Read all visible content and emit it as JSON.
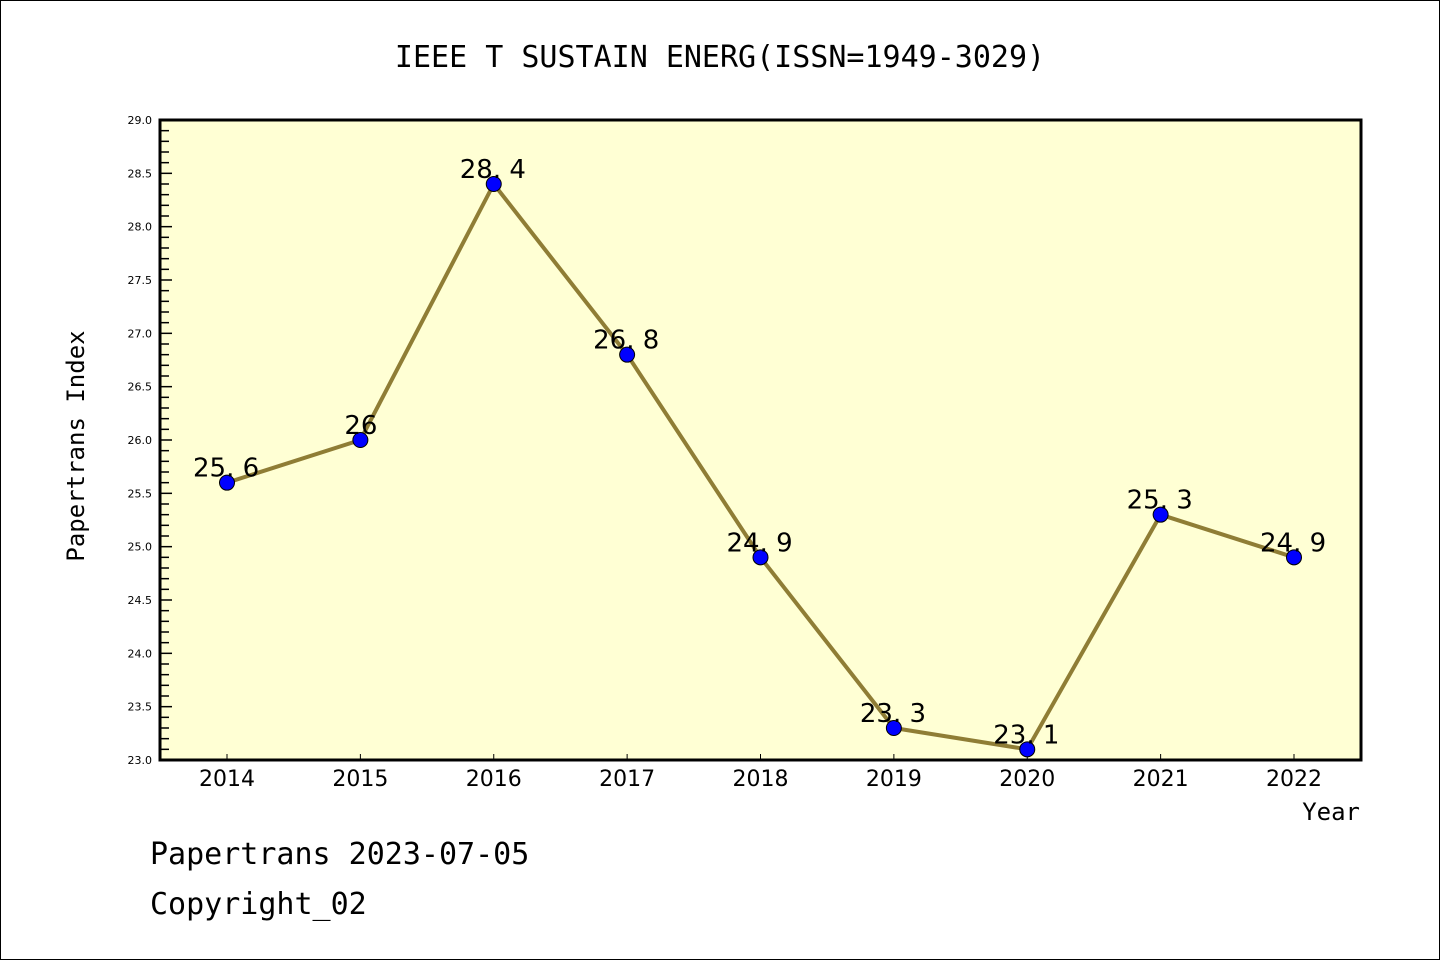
{
  "chart_data": {
    "type": "line",
    "title": "IEEE T SUSTAIN ENERG(ISSN=1949-3029)",
    "xlabel": "Year",
    "ylabel": "Papertrans Index",
    "categories": [
      "2014",
      "2015",
      "2016",
      "2017",
      "2018",
      "2019",
      "2020",
      "2021",
      "2022"
    ],
    "series": [
      {
        "name": "Papertrans Index",
        "values": [
          25.6,
          26,
          28.4,
          26.8,
          24.9,
          23.3,
          23.1,
          25.3,
          24.9
        ],
        "labels": [
          "25.6",
          "26",
          "28.4",
          "26.8",
          "24.9",
          "23.3",
          "23.1",
          "25.3",
          "24.9"
        ]
      }
    ],
    "ylim": [
      23.0,
      29.0
    ],
    "yticks": [
      "23.0",
      "23.5",
      "24.0",
      "24.5",
      "25.0",
      "25.5",
      "26.0",
      "26.5",
      "27.0",
      "27.5",
      "28.0",
      "28.5",
      "29.0"
    ],
    "grid": false,
    "colors": {
      "plot_bg": "#ffffd4",
      "line": "#8f7d35",
      "marker": "#0000ff",
      "axis": "#000000"
    }
  },
  "footer": {
    "date_line": "Papertrans 2023-07-05",
    "copyright": "Copyright_02"
  }
}
